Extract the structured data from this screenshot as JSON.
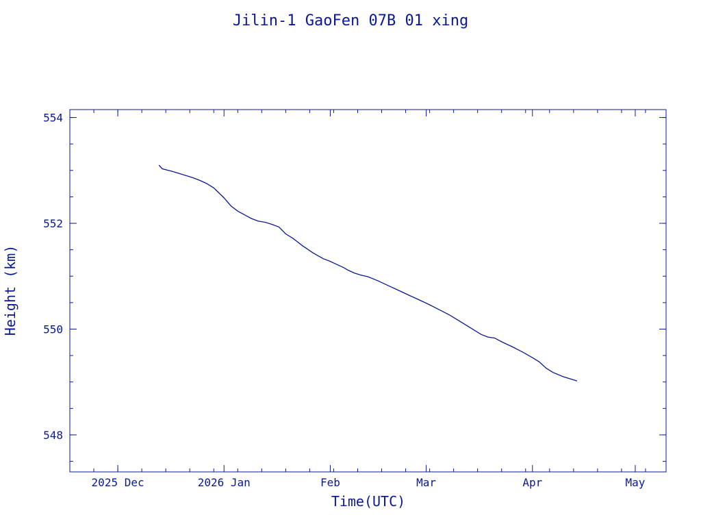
{
  "chart_data": {
    "type": "line",
    "title": "Jilin-1 GaoFen 07B 01 xing",
    "xlabel": "Time(UTC)",
    "ylabel": "Height (km)",
    "x_axis_type": "date",
    "xlim": [
      "2025-11-17",
      "2026-05-10"
    ],
    "ylim": [
      547.3,
      554.15
    ],
    "x_ticks": [
      {
        "date": "2025-12-01",
        "label": "2025 Dec"
      },
      {
        "date": "2026-01-01",
        "label": "2026 Jan"
      },
      {
        "date": "2026-02-01",
        "label": "Feb"
      },
      {
        "date": "2026-03-01",
        "label": "Mar"
      },
      {
        "date": "2026-04-01",
        "label": "Apr"
      },
      {
        "date": "2026-05-01",
        "label": "May"
      }
    ],
    "y_ticks": [
      548,
      550,
      552,
      554
    ],
    "y_minor_step": 0.5,
    "x_minor_step_days": 7,
    "grid": false,
    "colors": {
      "line": "#0a1896",
      "axes": "#0a1896",
      "text": "#0a1896",
      "background": "#ffffff"
    },
    "series": [
      {
        "x": [
          "2025-12-13",
          "2025-12-14",
          "2025-12-17",
          "2025-12-21",
          "2025-12-23",
          "2025-12-25",
          "2025-12-27",
          "2025-12-29",
          "2026-01-01",
          "2026-01-03",
          "2026-01-05",
          "2026-01-07",
          "2026-01-09",
          "2026-01-11",
          "2026-01-13",
          "2026-01-15",
          "2026-01-17",
          "2026-01-19",
          "2026-01-21",
          "2026-01-22",
          "2026-01-24",
          "2026-01-27",
          "2026-01-30",
          "2026-02-01",
          "2026-02-03",
          "2026-02-05",
          "2026-02-06",
          "2026-02-08",
          "2026-02-10",
          "2026-02-12",
          "2026-02-15",
          "2026-02-18",
          "2026-02-21",
          "2026-02-24",
          "2026-02-27",
          "2026-03-02",
          "2026-03-05",
          "2026-03-08",
          "2026-03-11",
          "2026-03-14",
          "2026-03-17",
          "2026-03-19",
          "2026-03-21",
          "2026-03-23",
          "2026-03-26",
          "2026-03-29",
          "2026-04-01",
          "2026-04-03",
          "2026-04-05",
          "2026-04-07",
          "2026-04-10",
          "2026-04-13",
          "2026-04-14"
        ],
        "values": [
          553.1,
          553.03,
          552.98,
          552.9,
          552.86,
          552.81,
          552.75,
          552.67,
          552.48,
          552.33,
          552.23,
          552.16,
          552.09,
          552.04,
          552.02,
          551.98,
          551.93,
          551.8,
          551.72,
          551.67,
          551.57,
          551.44,
          551.33,
          551.28,
          551.22,
          551.16,
          551.12,
          551.06,
          551.02,
          550.99,
          550.91,
          550.82,
          550.73,
          550.64,
          550.55,
          550.46,
          550.36,
          550.26,
          550.14,
          550.02,
          549.9,
          549.85,
          549.83,
          549.76,
          549.67,
          549.57,
          549.46,
          549.38,
          549.26,
          549.18,
          549.1,
          549.04,
          549.02
        ]
      }
    ]
  }
}
